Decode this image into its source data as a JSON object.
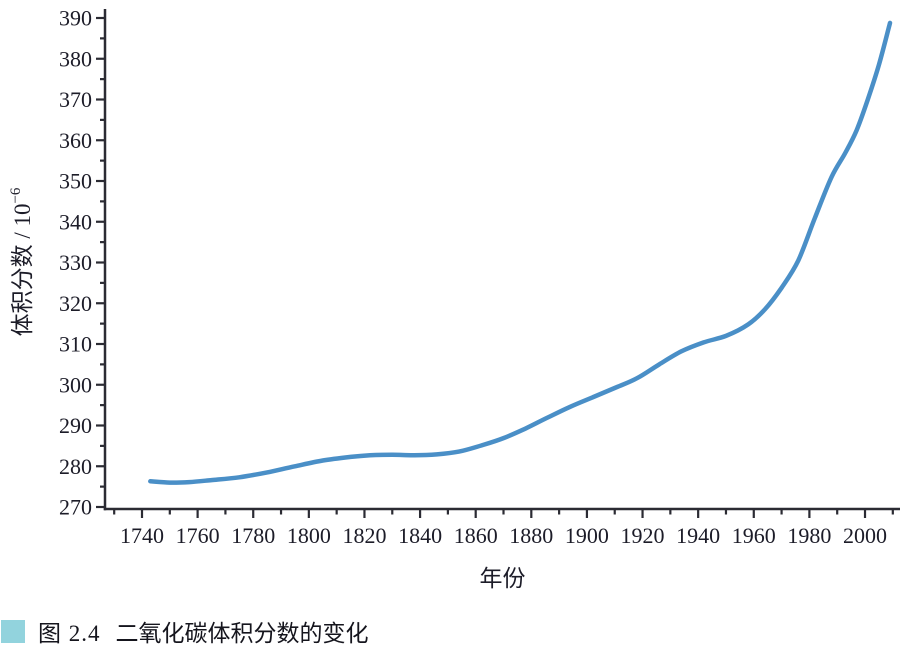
{
  "chart_data": {
    "type": "line",
    "title": "",
    "xlabel": "年份",
    "ylabel": "体积分数 / 10⁻⁶",
    "ylabel_parts": {
      "main": "体积分数 / 10",
      "sup": "−6"
    },
    "x": [
      1743,
      1750,
      1757,
      1765,
      1775,
      1785,
      1795,
      1805,
      1815,
      1822,
      1830,
      1838,
      1846,
      1854,
      1862,
      1870,
      1878,
      1886,
      1894,
      1902,
      1910,
      1918,
      1926,
      1934,
      1942,
      1950,
      1958,
      1964,
      1970,
      1976,
      1982,
      1988,
      1993,
      1997,
      2001,
      2005,
      2009
    ],
    "values": [
      276.3,
      276.0,
      276.1,
      276.6,
      277.3,
      278.5,
      280.0,
      281.4,
      282.3,
      282.7,
      282.8,
      282.7,
      282.9,
      283.6,
      285.1,
      286.9,
      289.3,
      292.0,
      294.6,
      296.9,
      299.2,
      301.6,
      305.0,
      308.2,
      310.4,
      312.0,
      314.8,
      318.5,
      323.8,
      330.5,
      341.0,
      351.0,
      357.0,
      362.5,
      370.0,
      378.5,
      388.8
    ],
    "xlim": [
      1726,
      2013
    ],
    "ylim": [
      270,
      390
    ],
    "x_ticks_labeled": [
      1740,
      1760,
      1780,
      1800,
      1820,
      1840,
      1860,
      1880,
      1900,
      1920,
      1940,
      1960,
      1980,
      2000
    ],
    "x_minor_tick_step": 10,
    "x_minor_tick_range": [
      1730,
      2010
    ],
    "y_ticks_labeled": [
      270,
      280,
      290,
      300,
      310,
      320,
      330,
      340,
      350,
      360,
      370,
      380,
      390
    ],
    "y_minor_tick_step": 5,
    "grid": false,
    "legend": "none",
    "line_color": "#4a8fc7",
    "axis_color": "#2b2b33",
    "tick_label_color": "#1c1c28"
  },
  "caption": {
    "figure_label": "图 2.4",
    "text": "二氧化碳体积分数的变化",
    "bullet_color": "#92d3dd"
  }
}
